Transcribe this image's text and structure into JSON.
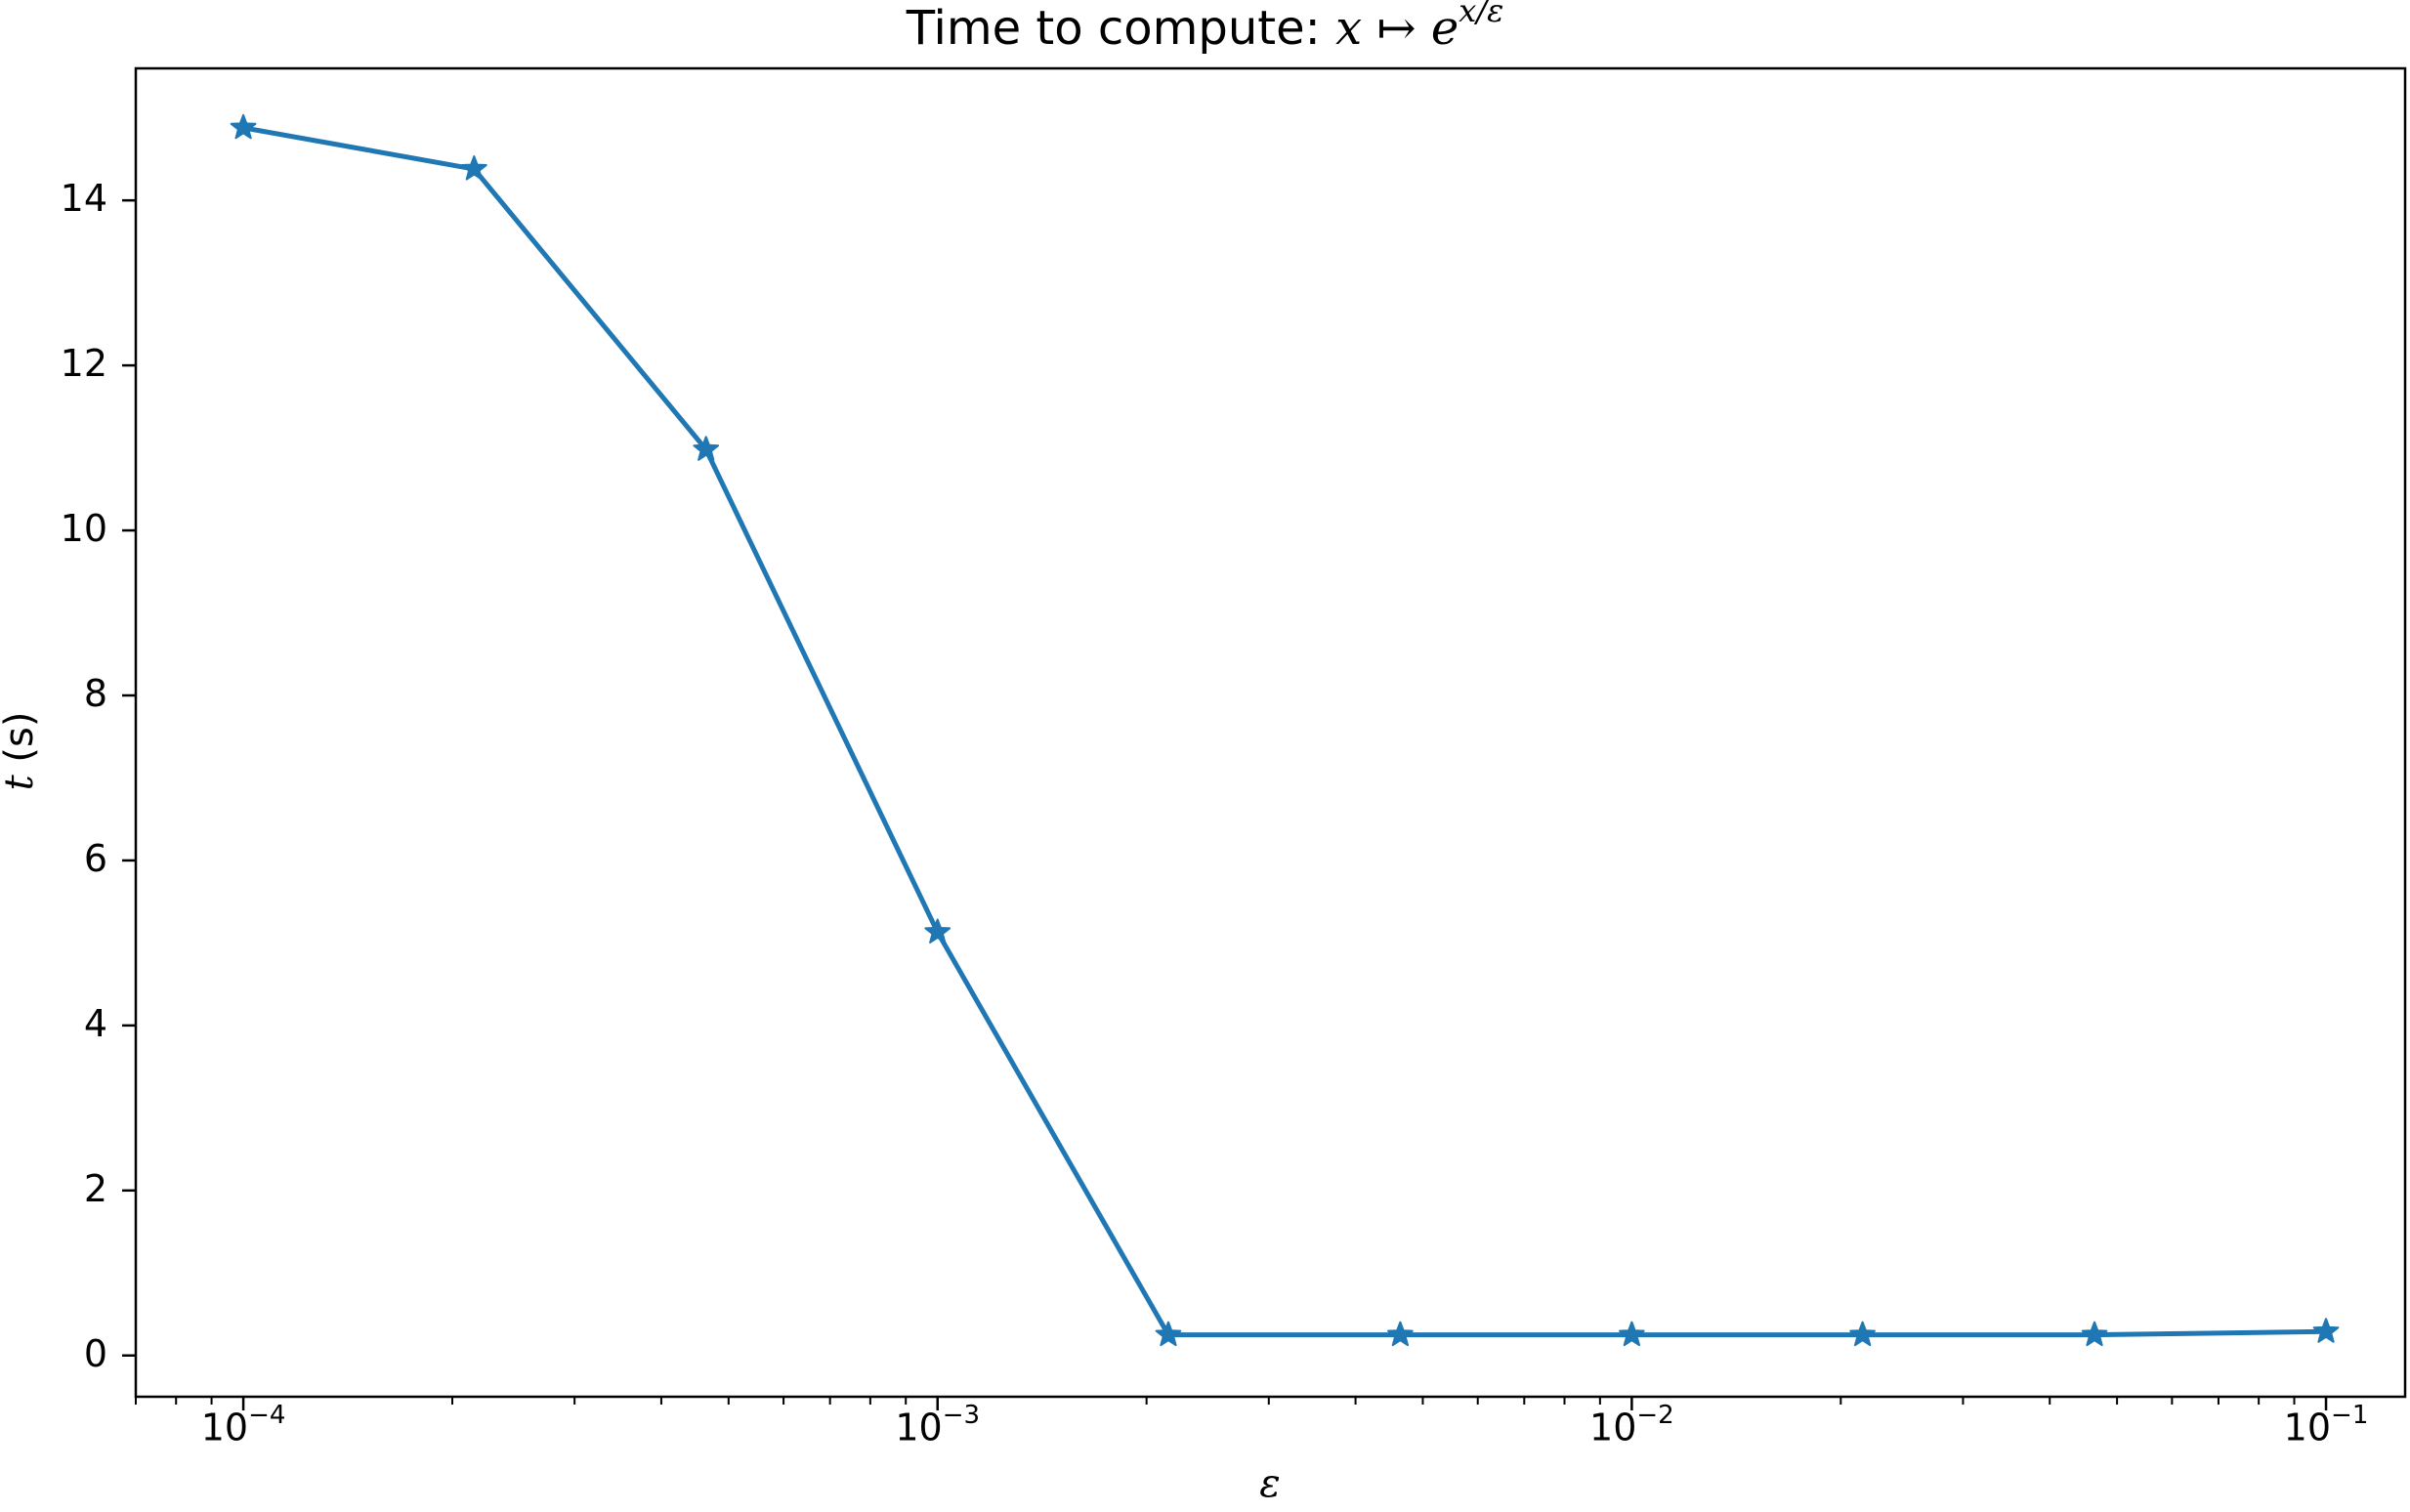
{
  "chart_data": {
    "type": "line",
    "title": {
      "prefix": "Time to compute: ",
      "math": "x ↦ e",
      "sup": "x/ε"
    },
    "xlabel": "ε",
    "ylabel": {
      "math": "t",
      "unit": " (s)"
    },
    "xscale": "log",
    "xlim": [
      7e-05,
      0.13
    ],
    "ylim": [
      -0.5,
      15.6
    ],
    "xticks": [
      {
        "value": 0.0001,
        "base": "10",
        "exp": "−4"
      },
      {
        "value": 0.001,
        "base": "10",
        "exp": "−3"
      },
      {
        "value": 0.01,
        "base": "10",
        "exp": "−2"
      },
      {
        "value": 0.1,
        "base": "10",
        "exp": "−1"
      }
    ],
    "yticks": [
      "0",
      "2",
      "4",
      "6",
      "8",
      "10",
      "12",
      "14"
    ],
    "grid": false,
    "marker": "star",
    "color": "#1f77b4",
    "series": [
      {
        "x": [
          0.0001,
          0.000215,
          0.000464,
          0.001,
          0.00215,
          0.00464,
          0.01,
          0.0215,
          0.0464,
          0.1
        ],
        "y": [
          14.88,
          14.38,
          10.98,
          5.13,
          0.25,
          0.25,
          0.25,
          0.25,
          0.25,
          0.29
        ]
      }
    ]
  }
}
